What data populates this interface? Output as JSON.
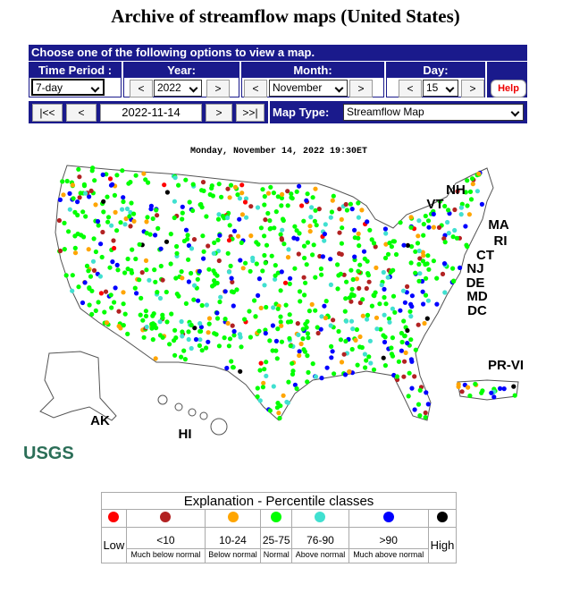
{
  "page_title": "Archive of streamflow maps (United States)",
  "controls": {
    "header": "Choose one of the following options to view a map.",
    "time_period": {
      "label": "Time Period :",
      "value": "7-day"
    },
    "year": {
      "label": "Year:",
      "prev": "<",
      "value": "2022",
      "next": ">"
    },
    "month": {
      "label": "Month:",
      "prev": "<",
      "value": "November",
      "next": ">"
    },
    "day": {
      "label": "Day:",
      "prev": "<",
      "value": "15",
      "next": ">"
    },
    "help": "Help",
    "nav": {
      "first": "|<<",
      "prev": "<",
      "date": "2022-11-14",
      "next": ">",
      "last": ">>|"
    },
    "map_type": {
      "label": "Map Type:",
      "value": "Streamflow Map"
    }
  },
  "map": {
    "timestamp": "Monday, November 14, 2022 19:30ET",
    "region_labels": [
      "NH",
      "VT",
      "MA",
      "RI",
      "CT",
      "NJ",
      "DE",
      "MD",
      "DC",
      "PR-VI",
      "AK",
      "HI"
    ],
    "logo": "USGS"
  },
  "legend": {
    "title": "Explanation - Percentile classes",
    "classes": [
      {
        "color": "#ff0000",
        "label": "Low"
      },
      {
        "color": "#b22222",
        "range": "<10",
        "label": "Much below normal"
      },
      {
        "color": "#ffa500",
        "range": "10-24",
        "label": "Below normal"
      },
      {
        "color": "#00ff00",
        "range": "25-75",
        "label": "Normal"
      },
      {
        "color": "#40e0d0",
        "range": "76-90",
        "label": "Above normal"
      },
      {
        "color": "#0000ff",
        "range": ">90",
        "label": "Much above normal"
      },
      {
        "color": "#000000",
        "label": "High"
      }
    ]
  }
}
